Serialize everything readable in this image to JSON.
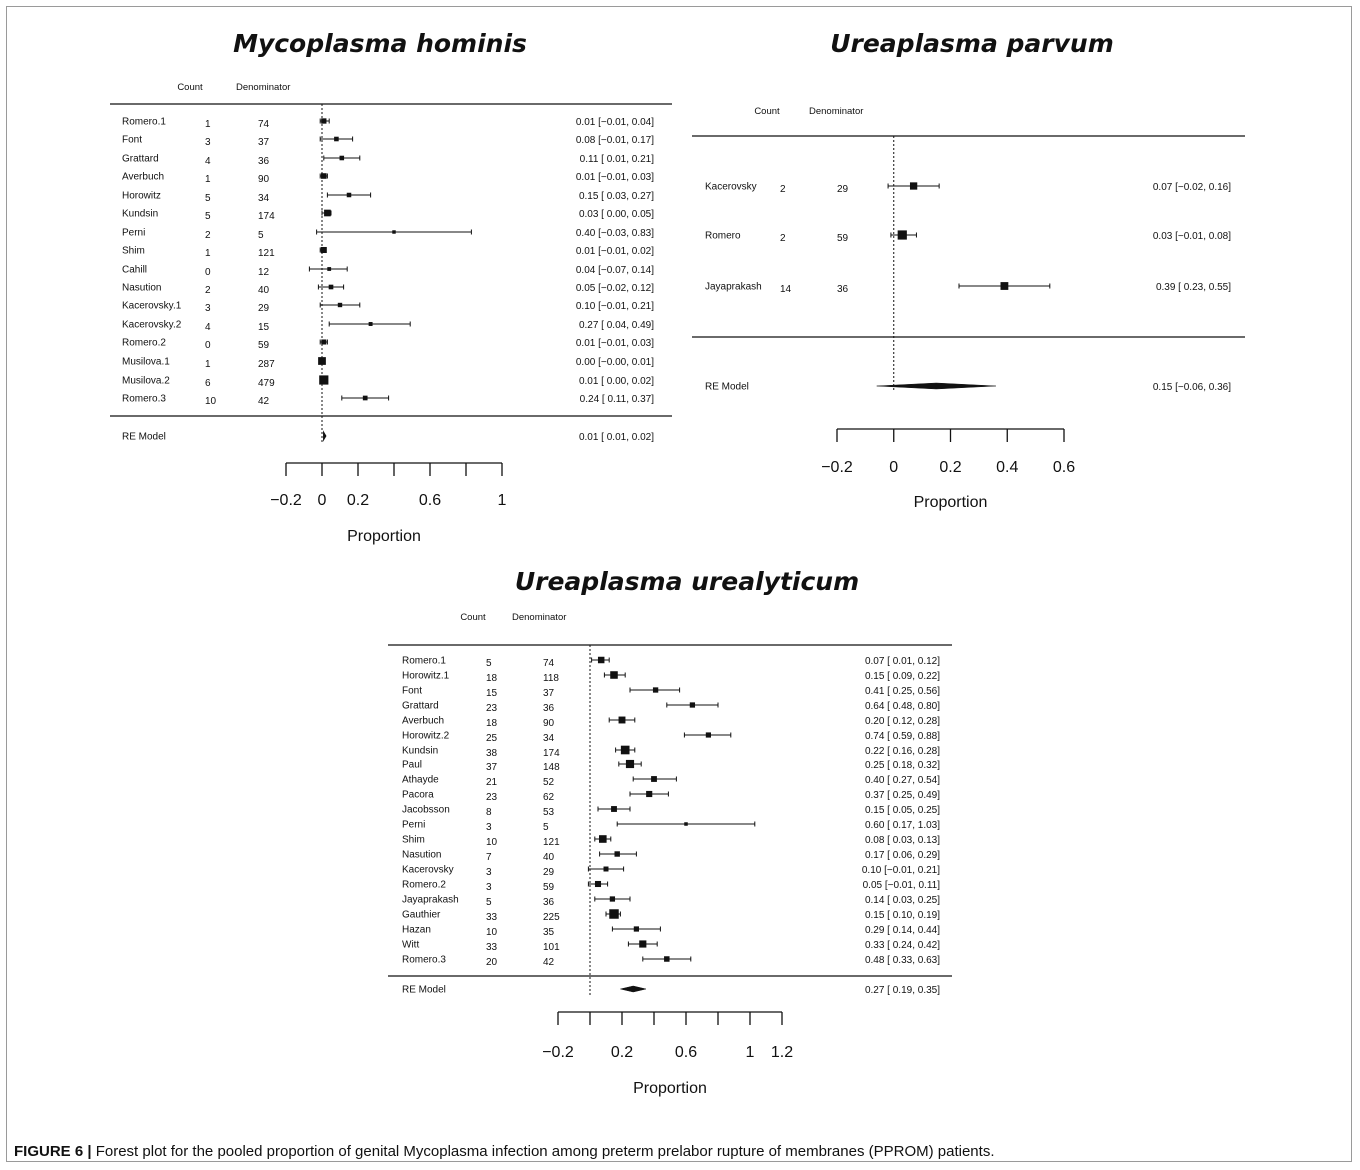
{
  "caption": {
    "label": "FIGURE 6 |",
    "text": "Forest plot for the pooled proportion of genital Mycoplasma infection among preterm prelabor rupture of membranes (PPROM) patients."
  },
  "chart_data": [
    {
      "type": "forest",
      "id": "mh",
      "title": "Mycoplasma hominis",
      "headers": {
        "count": "Count",
        "denominator": "Denominator"
      },
      "xlabel": "Proportion",
      "xticks": [
        -0.2,
        0,
        0.2,
        0.4,
        0.6,
        0.8,
        1
      ],
      "xtick_labels": [
        "−0.2",
        "0",
        "0.2",
        "",
        "0.6",
        "",
        "1"
      ],
      "xlim": [
        -0.2,
        1
      ],
      "studies": [
        {
          "name": "Romero.1",
          "count": "1",
          "denominator": "74",
          "estimate": 0.01,
          "lower": -0.01,
          "upper": 0.04,
          "label": "0.01 [−0.01, 0.04]"
        },
        {
          "name": "Font",
          "count": "3",
          "denominator": "37",
          "estimate": 0.08,
          "lower": -0.01,
          "upper": 0.17,
          "label": "0.08 [−0.01, 0.17]"
        },
        {
          "name": "Grattard",
          "count": "4",
          "denominator": "36",
          "estimate": 0.11,
          "lower": 0.01,
          "upper": 0.21,
          "label": "0.11 [ 0.01, 0.21]"
        },
        {
          "name": "Averbuch",
          "count": "1",
          "denominator": "90",
          "estimate": 0.01,
          "lower": -0.01,
          "upper": 0.03,
          "label": "0.01 [−0.01, 0.03]"
        },
        {
          "name": "Horowitz",
          "count": "5",
          "denominator": "34",
          "estimate": 0.15,
          "lower": 0.03,
          "upper": 0.27,
          "label": "0.15 [ 0.03, 0.27]"
        },
        {
          "name": "Kundsin",
          "count": "5",
          "denominator": "174",
          "estimate": 0.03,
          "lower": 0.0,
          "upper": 0.05,
          "label": "0.03 [ 0.00, 0.05]"
        },
        {
          "name": "Perni",
          "count": "2",
          "denominator": "5",
          "estimate": 0.4,
          "lower": -0.03,
          "upper": 0.83,
          "label": "0.40 [−0.03, 0.83]"
        },
        {
          "name": "Shim",
          "count": "1",
          "denominator": "121",
          "estimate": 0.01,
          "lower": -0.01,
          "upper": 0.02,
          "label": "0.01 [−0.01, 0.02]"
        },
        {
          "name": "Cahill",
          "count": "0",
          "denominator": "12",
          "estimate": 0.04,
          "lower": -0.07,
          "upper": 0.14,
          "label": "0.04 [−0.07, 0.14]"
        },
        {
          "name": "Nasution",
          "count": "2",
          "denominator": "40",
          "estimate": 0.05,
          "lower": -0.02,
          "upper": 0.12,
          "label": "0.05 [−0.02, 0.12]"
        },
        {
          "name": "Kacerovsky.1",
          "count": "3",
          "denominator": "29",
          "estimate": 0.1,
          "lower": -0.01,
          "upper": 0.21,
          "label": "0.10 [−0.01, 0.21]"
        },
        {
          "name": "Kacerovsky.2",
          "count": "4",
          "denominator": "15",
          "estimate": 0.27,
          "lower": 0.04,
          "upper": 0.49,
          "label": "0.27 [ 0.04, 0.49]"
        },
        {
          "name": "Romero.2",
          "count": "0",
          "denominator": "59",
          "estimate": 0.01,
          "lower": -0.01,
          "upper": 0.03,
          "label": "0.01 [−0.01, 0.03]"
        },
        {
          "name": "Musilova.1",
          "count": "1",
          "denominator": "287",
          "estimate": 0.0,
          "lower": -0.0,
          "upper": 0.01,
          "label": "0.00 [−0.00, 0.01]"
        },
        {
          "name": "Musilova.2",
          "count": "6",
          "denominator": "479",
          "estimate": 0.01,
          "lower": 0.0,
          "upper": 0.02,
          "label": "0.01 [ 0.00, 0.02]"
        },
        {
          "name": "Romero.3",
          "count": "10",
          "denominator": "42",
          "estimate": 0.24,
          "lower": 0.11,
          "upper": 0.37,
          "label": "0.24 [ 0.11, 0.37]"
        }
      ],
      "summary": {
        "name": "RE Model",
        "estimate": 0.01,
        "lower": 0.01,
        "upper": 0.02,
        "label": "0.01 [ 0.01, 0.02]"
      }
    },
    {
      "type": "forest",
      "id": "up",
      "title": "Ureaplasma parvum",
      "headers": {
        "count": "Count",
        "denominator": "Denominator"
      },
      "xlabel": "Proportion",
      "xticks": [
        -0.2,
        0,
        0.2,
        0.4,
        0.6
      ],
      "xtick_labels": [
        "−0.2",
        "0",
        "0.2",
        "0.4",
        "0.6"
      ],
      "xlim": [
        -0.2,
        0.6
      ],
      "studies": [
        {
          "name": "Kacerovsky",
          "count": "2",
          "denominator": "29",
          "estimate": 0.07,
          "lower": -0.02,
          "upper": 0.16,
          "label": "0.07 [−0.02, 0.16]"
        },
        {
          "name": "Romero",
          "count": "2",
          "denominator": "59",
          "estimate": 0.03,
          "lower": -0.01,
          "upper": 0.08,
          "label": "0.03 [−0.01, 0.08]"
        },
        {
          "name": "Jayaprakash",
          "count": "14",
          "denominator": "36",
          "estimate": 0.39,
          "lower": 0.23,
          "upper": 0.55,
          "label": "0.39 [ 0.23, 0.55]"
        }
      ],
      "summary": {
        "name": "RE Model",
        "estimate": 0.15,
        "lower": -0.06,
        "upper": 0.36,
        "label": "0.15 [−0.06, 0.36]"
      }
    },
    {
      "type": "forest",
      "id": "uu",
      "title": "Ureaplasma urealyticum",
      "headers": {
        "count": "Count",
        "denominator": "Denominator"
      },
      "xlabel": "Proportion",
      "xticks": [
        -0.2,
        0,
        0.2,
        0.4,
        0.6,
        0.8,
        1,
        1.2
      ],
      "xtick_labels": [
        "−0.2",
        "",
        "0.2",
        "",
        "0.6",
        "",
        "1",
        "1.2"
      ],
      "xlim": [
        -0.2,
        1.2
      ],
      "studies": [
        {
          "name": "Romero.1",
          "count": "5",
          "denominator": "74",
          "estimate": 0.07,
          "lower": 0.01,
          "upper": 0.12,
          "label": "0.07 [ 0.01, 0.12]"
        },
        {
          "name": "Horowitz.1",
          "count": "18",
          "denominator": "118",
          "estimate": 0.15,
          "lower": 0.09,
          "upper": 0.22,
          "label": "0.15 [ 0.09, 0.22]"
        },
        {
          "name": "Font",
          "count": "15",
          "denominator": "37",
          "estimate": 0.41,
          "lower": 0.25,
          "upper": 0.56,
          "label": "0.41 [ 0.25, 0.56]"
        },
        {
          "name": "Grattard",
          "count": "23",
          "denominator": "36",
          "estimate": 0.64,
          "lower": 0.48,
          "upper": 0.8,
          "label": "0.64 [ 0.48, 0.80]"
        },
        {
          "name": "Averbuch",
          "count": "18",
          "denominator": "90",
          "estimate": 0.2,
          "lower": 0.12,
          "upper": 0.28,
          "label": "0.20 [ 0.12, 0.28]"
        },
        {
          "name": "Horowitz.2",
          "count": "25",
          "denominator": "34",
          "estimate": 0.74,
          "lower": 0.59,
          "upper": 0.88,
          "label": "0.74 [ 0.59, 0.88]"
        },
        {
          "name": "Kundsin",
          "count": "38",
          "denominator": "174",
          "estimate": 0.22,
          "lower": 0.16,
          "upper": 0.28,
          "label": "0.22 [ 0.16, 0.28]"
        },
        {
          "name": "Paul",
          "count": "37",
          "denominator": "148",
          "estimate": 0.25,
          "lower": 0.18,
          "upper": 0.32,
          "label": "0.25 [ 0.18, 0.32]"
        },
        {
          "name": "Athayde",
          "count": "21",
          "denominator": "52",
          "estimate": 0.4,
          "lower": 0.27,
          "upper": 0.54,
          "label": "0.40 [ 0.27, 0.54]"
        },
        {
          "name": "Pacora",
          "count": "23",
          "denominator": "62",
          "estimate": 0.37,
          "lower": 0.25,
          "upper": 0.49,
          "label": "0.37 [ 0.25, 0.49]"
        },
        {
          "name": "Jacobsson",
          "count": "8",
          "denominator": "53",
          "estimate": 0.15,
          "lower": 0.05,
          "upper": 0.25,
          "label": "0.15 [ 0.05, 0.25]"
        },
        {
          "name": "Perni",
          "count": "3",
          "denominator": "5",
          "estimate": 0.6,
          "lower": 0.17,
          "upper": 1.03,
          "label": "0.60 [ 0.17, 1.03]"
        },
        {
          "name": "Shim",
          "count": "10",
          "denominator": "121",
          "estimate": 0.08,
          "lower": 0.03,
          "upper": 0.13,
          "label": "0.08 [ 0.03, 0.13]"
        },
        {
          "name": "Nasution",
          "count": "7",
          "denominator": "40",
          "estimate": 0.17,
          "lower": 0.06,
          "upper": 0.29,
          "label": "0.17 [ 0.06, 0.29]"
        },
        {
          "name": "Kacerovsky",
          "count": "3",
          "denominator": "29",
          "estimate": 0.1,
          "lower": -0.01,
          "upper": 0.21,
          "label": "0.10 [−0.01, 0.21]"
        },
        {
          "name": "Romero.2",
          "count": "3",
          "denominator": "59",
          "estimate": 0.05,
          "lower": -0.01,
          "upper": 0.11,
          "label": "0.05 [−0.01, 0.11]"
        },
        {
          "name": "Jayaprakash",
          "count": "5",
          "denominator": "36",
          "estimate": 0.14,
          "lower": 0.03,
          "upper": 0.25,
          "label": "0.14 [ 0.03, 0.25]"
        },
        {
          "name": "Gauthier",
          "count": "33",
          "denominator": "225",
          "estimate": 0.15,
          "lower": 0.1,
          "upper": 0.19,
          "label": "0.15 [ 0.10, 0.19]"
        },
        {
          "name": "Hazan",
          "count": "10",
          "denominator": "35",
          "estimate": 0.29,
          "lower": 0.14,
          "upper": 0.44,
          "label": "0.29 [ 0.14, 0.44]"
        },
        {
          "name": "Witt",
          "count": "33",
          "denominator": "101",
          "estimate": 0.33,
          "lower": 0.24,
          "upper": 0.42,
          "label": "0.33 [ 0.24, 0.42]"
        },
        {
          "name": "Romero.3",
          "count": "20",
          "denominator": "42",
          "estimate": 0.48,
          "lower": 0.33,
          "upper": 0.63,
          "label": "0.48 [ 0.33, 0.63]"
        }
      ],
      "summary": {
        "name": "RE Model",
        "estimate": 0.27,
        "lower": 0.19,
        "upper": 0.35,
        "label": "0.27 [ 0.19, 0.35]"
      }
    }
  ]
}
